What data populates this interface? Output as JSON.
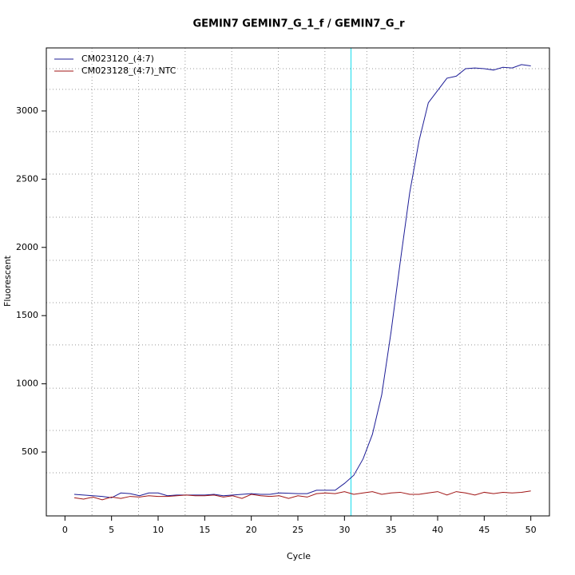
{
  "chart_data": {
    "type": "line",
    "title": "GEMIN7  GEMIN7_G_1_f / GEMIN7_G_r",
    "x_label": "Cycle",
    "y_label": "Fluorescent",
    "x": [
      1,
      2,
      3,
      4,
      5,
      6,
      7,
      8,
      9,
      10,
      11,
      12,
      13,
      14,
      15,
      16,
      17,
      18,
      19,
      20,
      21,
      22,
      23,
      24,
      25,
      26,
      27,
      28,
      29,
      30,
      31,
      32,
      33,
      34,
      35,
      36,
      37,
      38,
      39,
      40,
      41,
      42,
      43,
      44,
      45,
      46,
      47,
      48,
      49,
      50
    ],
    "series": [
      {
        "name": "CM023120_(4:7)",
        "color": "#1c1c96",
        "values": [
          190,
          185,
          180,
          175,
          165,
          200,
          195,
          180,
          200,
          200,
          180,
          185,
          185,
          185,
          185,
          190,
          180,
          185,
          190,
          195,
          190,
          190,
          200,
          198,
          195,
          195,
          220,
          220,
          220,
          270,
          330,
          450,
          630,
          920,
          1380,
          1900,
          2400,
          2780,
          3060,
          3150,
          3240,
          3255,
          3310,
          3315,
          3310,
          3300,
          3320,
          3315,
          3340,
          3330
        ]
      },
      {
        "name": "CM023128_(4:7)_NTC",
        "color": "#a01414",
        "values": [
          165,
          155,
          170,
          150,
          170,
          160,
          175,
          170,
          180,
          175,
          175,
          180,
          185,
          180,
          180,
          185,
          170,
          180,
          160,
          190,
          180,
          175,
          180,
          160,
          180,
          170,
          195,
          200,
          195,
          210,
          190,
          200,
          210,
          190,
          200,
          205,
          190,
          190,
          200,
          210,
          185,
          210,
          200,
          185,
          205,
          195,
          205,
          200,
          205,
          215
        ]
      }
    ],
    "threshold_cycle": 30.7,
    "threshold_color": "#33e0ee",
    "xlim": [
      -2,
      52
    ],
    "ylim": [
      32,
      3462
    ],
    "xticks": [
      0,
      5,
      10,
      15,
      20,
      25,
      30,
      35,
      40,
      45,
      50
    ],
    "yticks": [
      500,
      1000,
      1500,
      2000,
      2500,
      3000
    ],
    "grid": true,
    "xgrid": [
      2.9,
      7.9,
      12.9,
      17.9,
      22.9,
      27.9,
      32.4,
      37.4,
      42.4,
      47.4
    ],
    "ygrid": [
      348,
      658,
      968,
      1285,
      1595,
      1905,
      2221,
      2537,
      2848,
      3158,
      3310
    ],
    "legend": "top-left"
  }
}
